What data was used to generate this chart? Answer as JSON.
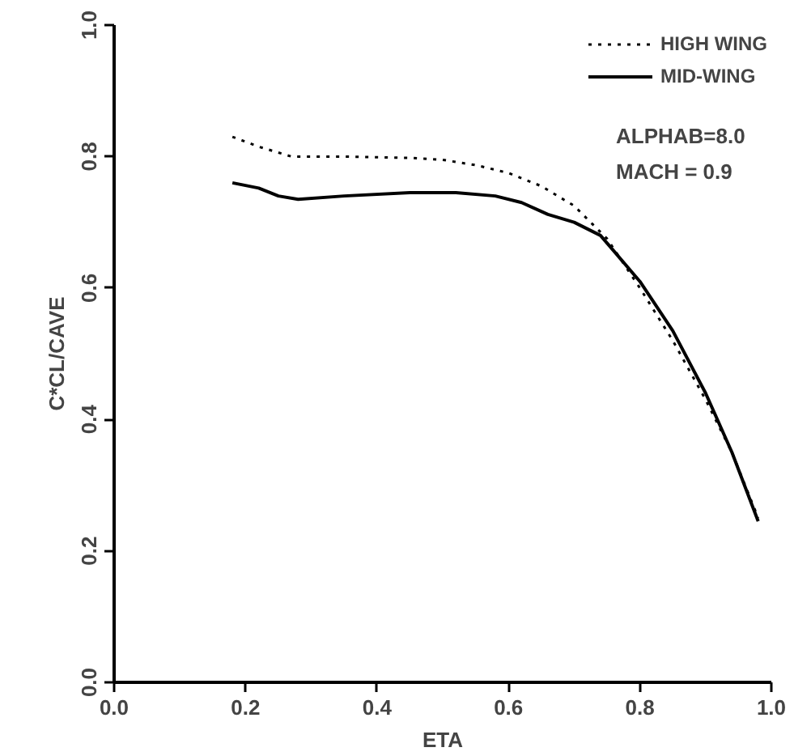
{
  "chart_data": {
    "type": "line",
    "xlabel": "ETA",
    "ylabel": "C*CL/CAVE",
    "xlim": [
      0.0,
      1.0
    ],
    "ylim": [
      0.0,
      1.0
    ],
    "xticks": [
      {
        "value": 0,
        "label": "0.0"
      },
      0.2,
      0.4,
      0.6,
      0.8,
      {
        "value": 1,
        "label": "1.0"
      }
    ],
    "yticks": [
      {
        "value": 0,
        "label": "0.0"
      },
      0.2,
      0.4,
      0.6,
      0.8,
      {
        "value": 1,
        "label": "1.0"
      }
    ],
    "grid": false,
    "legend": "top right",
    "annotations": [
      "ALPHAB=8.0",
      "MACH = 0.9"
    ],
    "series": [
      {
        "name": "HIGH WING",
        "color": "#000000",
        "line_style": "dotted",
        "x": [
          0.18,
          0.22,
          0.27,
          0.35,
          0.45,
          0.5,
          0.55,
          0.6,
          0.65,
          0.7,
          0.75,
          0.8,
          0.85,
          0.9,
          0.94,
          0.98
        ],
        "values": [
          0.83,
          0.815,
          0.8,
          0.8,
          0.798,
          0.795,
          0.787,
          0.775,
          0.755,
          0.725,
          0.675,
          0.6,
          0.52,
          0.43,
          0.35,
          0.25
        ]
      },
      {
        "name": "MID-WING",
        "color": "#000000",
        "line_style": "solid",
        "x": [
          0.18,
          0.22,
          0.25,
          0.28,
          0.35,
          0.45,
          0.52,
          0.58,
          0.62,
          0.66,
          0.7,
          0.74,
          0.8,
          0.85,
          0.9,
          0.94,
          0.98
        ],
        "values": [
          0.76,
          0.752,
          0.74,
          0.735,
          0.74,
          0.745,
          0.745,
          0.74,
          0.73,
          0.712,
          0.7,
          0.68,
          0.61,
          0.535,
          0.44,
          0.35,
          0.245
        ]
      }
    ]
  }
}
